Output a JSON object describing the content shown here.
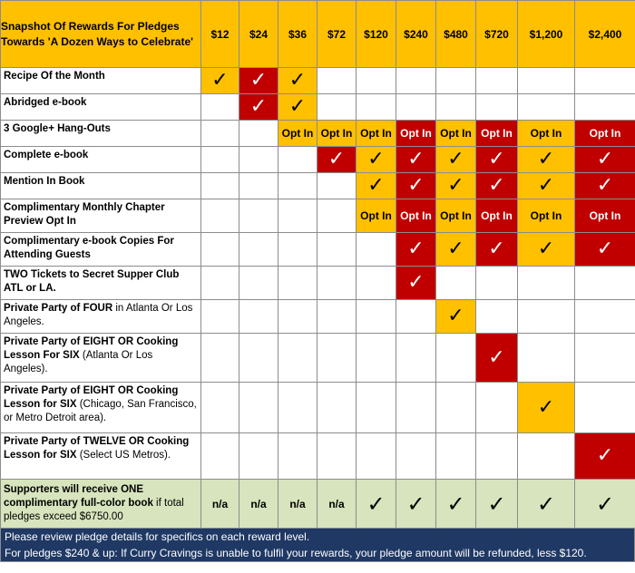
{
  "title": "Snapshot Of Rewards For Pledges Towards 'A Dozen Ways to Celebrate'",
  "tiers": [
    "$12",
    "$24",
    "$36",
    "$72",
    "$120",
    "$240",
    "$480",
    "$720",
    "$1,200",
    "$2,400"
  ],
  "symbols": {
    "check": "✓",
    "optin": "Opt In",
    "na": "n/a"
  },
  "colors": {
    "gold": "#ffc000",
    "red": "#c00000",
    "green": "#d7e4bd",
    "footer": "#1f3864"
  },
  "rows": [
    {
      "label": [
        {
          "t": "Recipe Of the Month",
          "b": true
        }
      ],
      "cells": [
        [
          "gold",
          "check"
        ],
        [
          "red",
          "check"
        ],
        [
          "gold",
          "check"
        ],
        [
          "",
          ""
        ],
        [
          "",
          ""
        ],
        [
          "",
          ""
        ],
        [
          "",
          ""
        ],
        [
          "",
          ""
        ],
        [
          "",
          ""
        ],
        [
          "",
          ""
        ]
      ]
    },
    {
      "label": [
        {
          "t": "Abridged e-book",
          "b": true
        }
      ],
      "cells": [
        [
          "",
          ""
        ],
        [
          "red",
          "check"
        ],
        [
          "gold",
          "check"
        ],
        [
          "",
          ""
        ],
        [
          "",
          ""
        ],
        [
          "",
          ""
        ],
        [
          "",
          ""
        ],
        [
          "",
          ""
        ],
        [
          "",
          ""
        ],
        [
          "",
          ""
        ]
      ]
    },
    {
      "label": [
        {
          "t": "3 Google+ Hang-Outs",
          "b": true
        }
      ],
      "cells": [
        [
          "",
          ""
        ],
        [
          "",
          ""
        ],
        [
          "gold",
          "optin"
        ],
        [
          "gold",
          "optin"
        ],
        [
          "gold",
          "optin"
        ],
        [
          "red",
          "optin"
        ],
        [
          "gold",
          "optin"
        ],
        [
          "red",
          "optin"
        ],
        [
          "gold",
          "optin"
        ],
        [
          "red",
          "optin"
        ]
      ]
    },
    {
      "label": [
        {
          "t": "Complete e-book",
          "b": true
        }
      ],
      "cells": [
        [
          "",
          ""
        ],
        [
          "",
          ""
        ],
        [
          "",
          ""
        ],
        [
          "red",
          "check"
        ],
        [
          "gold",
          "check"
        ],
        [
          "red",
          "check"
        ],
        [
          "gold",
          "check"
        ],
        [
          "red",
          "check"
        ],
        [
          "gold",
          "check"
        ],
        [
          "red",
          "check"
        ]
      ]
    },
    {
      "label": [
        {
          "t": "Mention In Book",
          "b": true
        }
      ],
      "cells": [
        [
          "",
          ""
        ],
        [
          "",
          ""
        ],
        [
          "",
          ""
        ],
        [
          "",
          ""
        ],
        [
          "gold",
          "check"
        ],
        [
          "red",
          "check"
        ],
        [
          "gold",
          "check"
        ],
        [
          "red",
          "check"
        ],
        [
          "gold",
          "check"
        ],
        [
          "red",
          "check"
        ]
      ]
    },
    {
      "label": [
        {
          "t": "Complimentary Monthly Chapter Preview Opt In",
          "b": true
        }
      ],
      "cells": [
        [
          "",
          ""
        ],
        [
          "",
          ""
        ],
        [
          "",
          ""
        ],
        [
          "",
          ""
        ],
        [
          "gold",
          "optin"
        ],
        [
          "red",
          "optin"
        ],
        [
          "gold",
          "optin"
        ],
        [
          "red",
          "optin"
        ],
        [
          "gold",
          "optin"
        ],
        [
          "red",
          "optin"
        ]
      ]
    },
    {
      "label": [
        {
          "t": "Complimentary e-book Copies For Attending Guests",
          "b": true
        }
      ],
      "cells": [
        [
          "",
          ""
        ],
        [
          "",
          ""
        ],
        [
          "",
          ""
        ],
        [
          "",
          ""
        ],
        [
          "",
          ""
        ],
        [
          "red",
          "check"
        ],
        [
          "gold",
          "check"
        ],
        [
          "red",
          "check"
        ],
        [
          "gold",
          "check"
        ],
        [
          "red",
          "check"
        ]
      ]
    },
    {
      "label": [
        {
          "t": "TWO Tickets to Secret Supper Club ATL or LA.",
          "b": true
        }
      ],
      "cells": [
        [
          "",
          ""
        ],
        [
          "",
          ""
        ],
        [
          "",
          ""
        ],
        [
          "",
          ""
        ],
        [
          "",
          ""
        ],
        [
          "red",
          "check"
        ],
        [
          "",
          ""
        ],
        [
          "",
          ""
        ],
        [
          "",
          ""
        ],
        [
          "",
          ""
        ]
      ]
    },
    {
      "label": [
        {
          "t": "Private Party of FOUR",
          "b": true
        },
        {
          "t": " in Atlanta Or Los Angeles.",
          "b": false
        }
      ],
      "cells": [
        [
          "",
          ""
        ],
        [
          "",
          ""
        ],
        [
          "",
          ""
        ],
        [
          "",
          ""
        ],
        [
          "",
          ""
        ],
        [
          "",
          ""
        ],
        [
          "gold",
          "check"
        ],
        [
          "",
          ""
        ],
        [
          "",
          ""
        ],
        [
          "",
          ""
        ]
      ]
    },
    {
      "label": [
        {
          "t": "Private Party of EIGHT OR Cooking Lesson For SIX",
          "b": true
        },
        {
          "t": " (Atlanta Or Los Angeles).",
          "b": false
        }
      ],
      "cells": [
        [
          "",
          ""
        ],
        [
          "",
          ""
        ],
        [
          "",
          ""
        ],
        [
          "",
          ""
        ],
        [
          "",
          ""
        ],
        [
          "",
          ""
        ],
        [
          "",
          ""
        ],
        [
          "red",
          "check"
        ],
        [
          "",
          ""
        ],
        [
          "",
          ""
        ]
      ]
    },
    {
      "label": [
        {
          "t": "Private Party of EIGHT OR Cooking Lesson for SIX",
          "b": true
        },
        {
          "t": " (Chicago, San Francisco, or Metro Detroit area).",
          "b": false
        }
      ],
      "cells": [
        [
          "",
          ""
        ],
        [
          "",
          ""
        ],
        [
          "",
          ""
        ],
        [
          "",
          ""
        ],
        [
          "",
          ""
        ],
        [
          "",
          ""
        ],
        [
          "",
          ""
        ],
        [
          "",
          ""
        ],
        [
          "gold",
          "check"
        ],
        [
          "",
          ""
        ]
      ]
    },
    {
      "label": [
        {
          "t": "Private Party of TWELVE OR Cooking Lesson for SIX",
          "b": true
        },
        {
          "t": " (Select US Metros).",
          "b": false
        }
      ],
      "cells": [
        [
          "",
          ""
        ],
        [
          "",
          ""
        ],
        [
          "",
          ""
        ],
        [
          "",
          ""
        ],
        [
          "",
          ""
        ],
        [
          "",
          ""
        ],
        [
          "",
          ""
        ],
        [
          "",
          ""
        ],
        [
          "",
          ""
        ],
        [
          "red",
          "check"
        ]
      ]
    }
  ],
  "summary": {
    "label": [
      {
        "t": "Supporters will receive ONE complimentary full-color book",
        "b": true
      },
      {
        "t": " if total pledges exceed $6750.00",
        "b": false
      }
    ],
    "cells": [
      [
        "green",
        "na"
      ],
      [
        "green",
        "na"
      ],
      [
        "green",
        "na"
      ],
      [
        "green",
        "na"
      ],
      [
        "green",
        "check"
      ],
      [
        "green",
        "check"
      ],
      [
        "green",
        "check"
      ],
      [
        "green",
        "check"
      ],
      [
        "green",
        "check"
      ],
      [
        "green",
        "check"
      ]
    ]
  },
  "footer": {
    "line1": "Please review pledge details for specifics on each reward level.",
    "line2": "For pledges $240 & up: If Curry Cravings is unable to fulfil your rewards, your pledge amount will be refunded, less $120."
  }
}
